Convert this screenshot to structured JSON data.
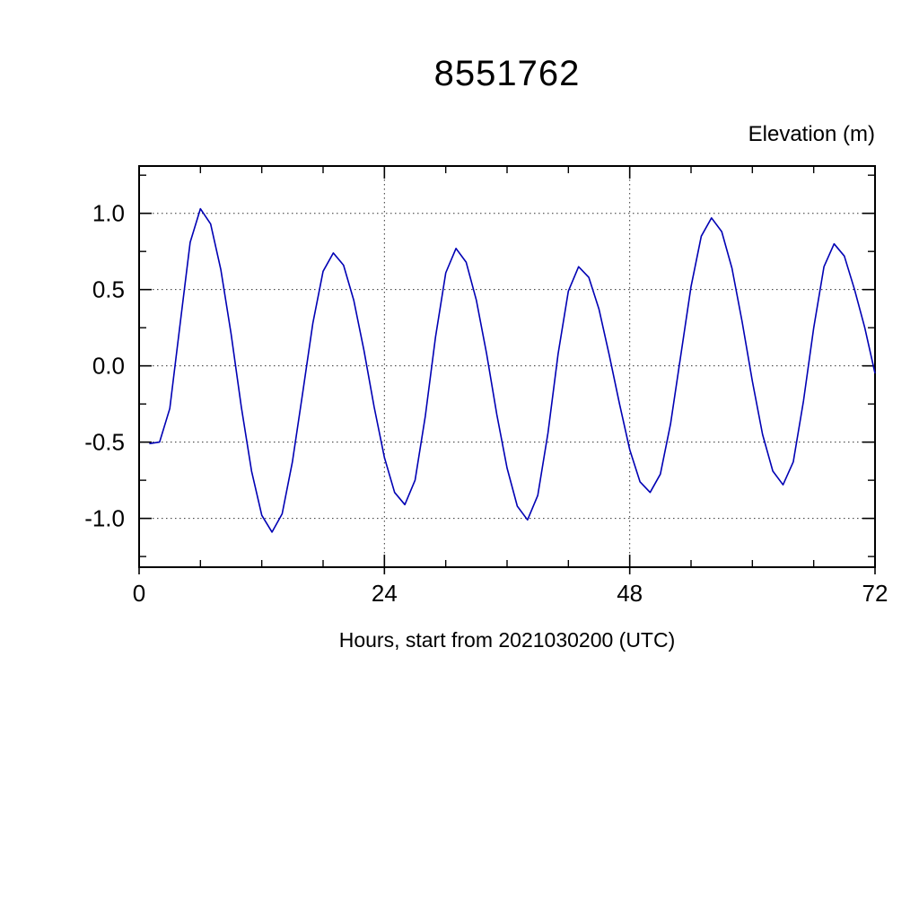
{
  "page": {
    "background": "#ffffff"
  },
  "chart": {
    "title": "8551762",
    "ylabel_top": "Elevation (m)",
    "xlabel": "Hours, start from 2021030200 (UTC)"
  },
  "chart_data": {
    "type": "line",
    "title": "8551762",
    "xlabel": "Hours, start from 2021030200 (UTC)",
    "ylabel": "Elevation (m)",
    "xlim": [
      0,
      72
    ],
    "ylim": [
      -1.32,
      1.31
    ],
    "x_major_ticks": [
      0,
      24,
      48,
      72
    ],
    "x_tick_labels": [
      "0",
      "24",
      "48",
      "72"
    ],
    "x_minor_ticks": [
      6,
      12,
      18,
      30,
      36,
      42,
      54,
      60,
      66
    ],
    "y_major_ticks": [
      1.0,
      0.5,
      0.0,
      -0.5,
      -1.0
    ],
    "y_tick_labels": [
      "1.0",
      "0.5",
      "0.0",
      "-0.5",
      "-1.0"
    ],
    "y_minor_ticks": [
      1.25,
      0.75,
      0.25,
      -0.25,
      -0.75,
      -1.25
    ],
    "grid_x": [
      24,
      48
    ],
    "grid_y": [
      1.0,
      0.5,
      0.0,
      -0.5,
      -1.0
    ],
    "grid_on": true,
    "legend": "none",
    "line_color": "#0000b4",
    "frame_color": "#000000",
    "series": [
      {
        "name": "elevation",
        "x": [
          1,
          2,
          3,
          4,
          5,
          6,
          7,
          8,
          9,
          10,
          11,
          12,
          13,
          14,
          15,
          16,
          17,
          18,
          19,
          20,
          21,
          22,
          23,
          24,
          25,
          26,
          27,
          28,
          29,
          30,
          31,
          32,
          33,
          34,
          35,
          36,
          37,
          38,
          39,
          40,
          41,
          42,
          43,
          44,
          45,
          46,
          47,
          48,
          49,
          50,
          51,
          52,
          53,
          54,
          55,
          56,
          57,
          58,
          59,
          60,
          61,
          62,
          63,
          64,
          65,
          66,
          67,
          68,
          69,
          70,
          71,
          72
        ],
        "y": [
          -0.51,
          -0.5,
          -0.28,
          0.27,
          0.81,
          1.03,
          0.93,
          0.63,
          0.21,
          -0.27,
          -0.69,
          -0.98,
          -1.09,
          -0.97,
          -0.63,
          -0.18,
          0.28,
          0.62,
          0.74,
          0.66,
          0.43,
          0.1,
          -0.27,
          -0.6,
          -0.83,
          -0.91,
          -0.75,
          -0.33,
          0.19,
          0.61,
          0.77,
          0.68,
          0.43,
          0.08,
          -0.32,
          -0.67,
          -0.92,
          -1.01,
          -0.85,
          -0.44,
          0.08,
          0.49,
          0.65,
          0.58,
          0.37,
          0.07,
          -0.25,
          -0.55,
          -0.76,
          -0.83,
          -0.71,
          -0.38,
          0.07,
          0.52,
          0.85,
          0.97,
          0.88,
          0.64,
          0.29,
          -0.1,
          -0.45,
          -0.69,
          -0.78,
          -0.63,
          -0.23,
          0.25,
          0.65,
          0.8,
          0.72,
          0.5,
          0.25,
          -0.05
        ]
      }
    ]
  }
}
